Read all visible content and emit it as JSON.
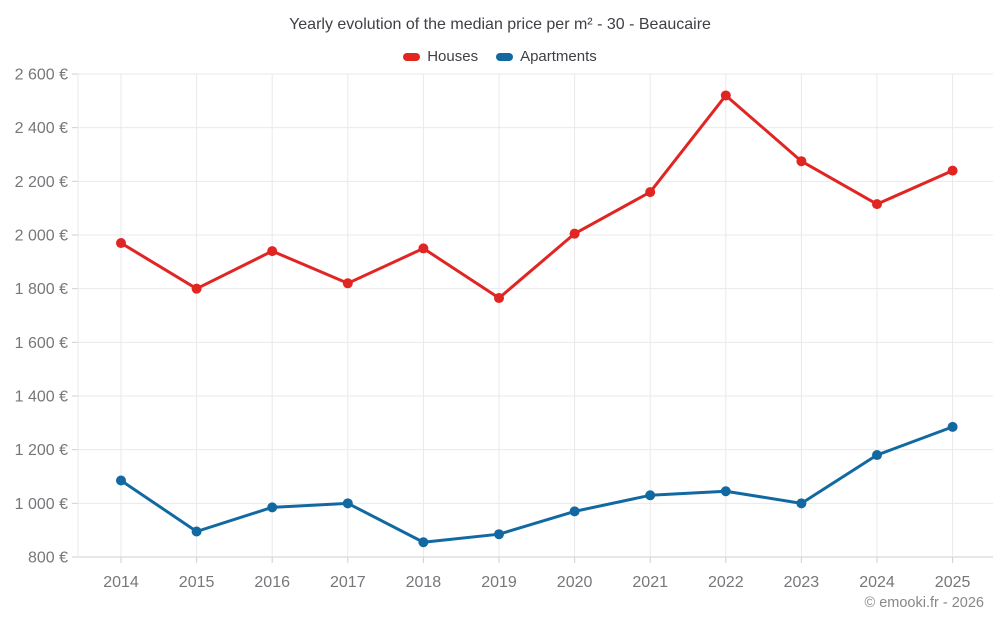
{
  "chart_data": {
    "type": "line",
    "title": "Yearly evolution of the median price per m² - 30 - Beaucaire",
    "xlabel": "",
    "ylabel": "",
    "categories": [
      "2014",
      "2015",
      "2016",
      "2017",
      "2018",
      "2019",
      "2020",
      "2021",
      "2022",
      "2023",
      "2024",
      "2025"
    ],
    "series": [
      {
        "name": "Houses",
        "color": "#e02522",
        "values": [
          1970,
          1800,
          1940,
          1820,
          1950,
          1765,
          2005,
          2160,
          2520,
          2275,
          2115,
          2240
        ]
      },
      {
        "name": "Apartments",
        "color": "#1269a2",
        "values": [
          1085,
          895,
          985,
          1000,
          855,
          885,
          970,
          1030,
          1045,
          1000,
          1180,
          1285
        ]
      }
    ],
    "ylim": [
      800,
      2600
    ],
    "ytick_step": 200,
    "ytick_suffix": " €",
    "ytick_labels": [
      "800 €",
      "1 000 €",
      "1 200 €",
      "1 400 €",
      "1 600 €",
      "1 800 €",
      "2 000 €",
      "2 200 €",
      "2 400 €",
      "2 600 €"
    ],
    "grid": true,
    "legend_position": "top"
  },
  "footer": {
    "copyright": "© emooki.fr - 2026"
  },
  "palette": {
    "grid_line": "#e9e9e9",
    "axis_line": "#cfcfcf",
    "tick_label": "#76777a",
    "title_text": "#3f4045"
  }
}
